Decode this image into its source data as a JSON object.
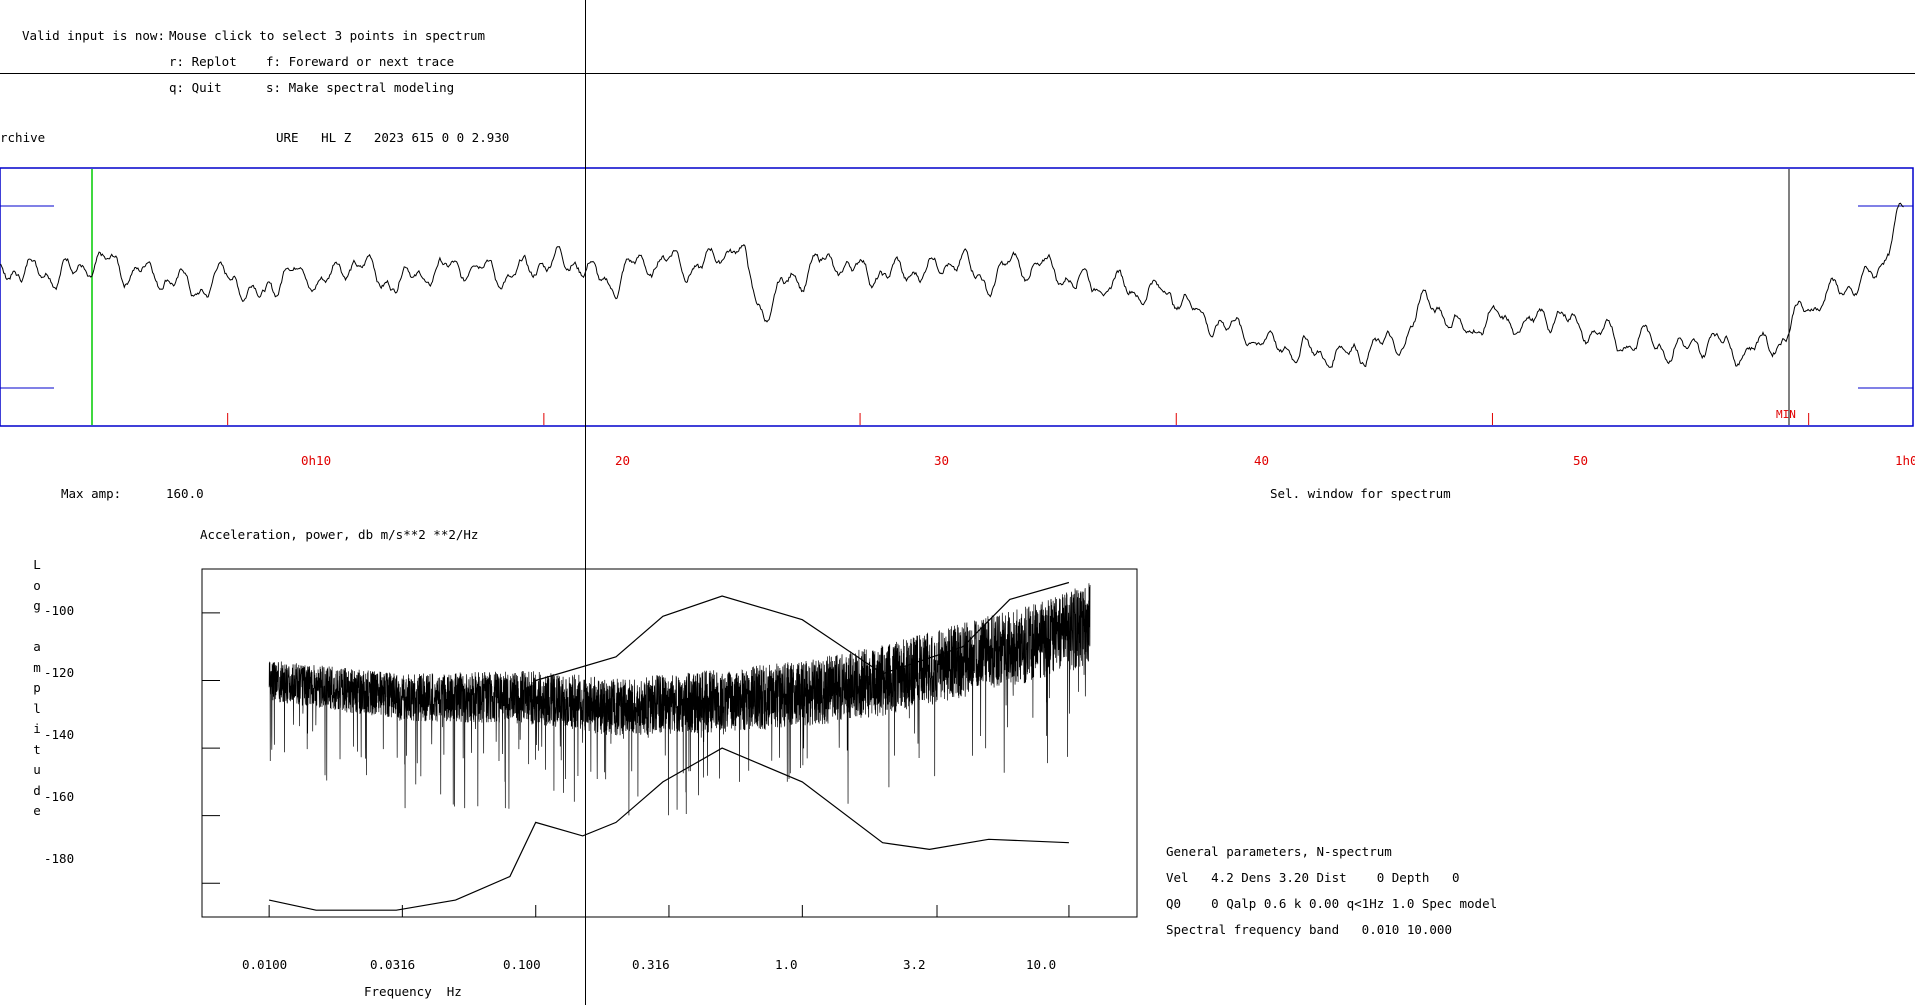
{
  "menu": {
    "prompt_label": "Valid input is now:",
    "prompt_value": "Mouse click to select 3 points in spectrum",
    "commands": [
      {
        "label": "r: Replot"
      },
      {
        "label": "f: Foreward or next trace"
      },
      {
        "label": "q: Quit"
      },
      {
        "label": "s: Make spectral modeling"
      }
    ]
  },
  "trace_header": {
    "archive": "rchive",
    "station_info": "URE   HL Z   2023 615 0 0 2.930"
  },
  "time_axis": {
    "ticks": [
      "0h10",
      "20",
      "30",
      "40",
      "50",
      "1h0"
    ],
    "unit_marker": "MIN"
  },
  "trace_footer": {
    "max_amp_label": "Max amp:",
    "max_amp_value": "160.0",
    "window_label": "Sel. window for spectrum"
  },
  "spectrum": {
    "title": "Acceleration, power, db m/s**2 **2/Hz",
    "y_label_letters": [
      "L",
      "o",
      "g",
      "",
      "a",
      "m",
      "p",
      "l",
      "i",
      "t",
      "u",
      "d",
      "e"
    ],
    "y_ticks": [
      "-100",
      "-120",
      "-140",
      "-160",
      "-180"
    ],
    "x_ticks": [
      "0.0100",
      "0.0316",
      "0.100",
      "0.316",
      "1.0",
      "3.2",
      "10.0"
    ],
    "x_label": "Frequency  Hz"
  },
  "params": {
    "title": "General parameters, N-spectrum",
    "line1": "Vel   4.2 Dens 3.20 Dist    0 Depth   0",
    "line2": "Q0    0 Qalp 0.6 k 0.00 q<1Hz 1.0 Spec model",
    "line3": "Spectral frequency band   0.010 10.000"
  },
  "colors": {
    "frame": "#0000cc",
    "time_axis": "#e00000",
    "window_marker": "#00cc00",
    "trace": "#000000"
  },
  "chart_data": [
    {
      "type": "line",
      "title": "",
      "xlabel": "",
      "ylabel": "",
      "x_unit": "minutes",
      "xlim": [
        2.8,
        63.3
      ],
      "x_ticks": [
        10,
        20,
        30,
        40,
        50,
        60
      ],
      "tick_labels": [
        "0h10",
        "20",
        "30",
        "40",
        "50",
        "1h0"
      ],
      "series": [
        {
          "x": [
            0,
            1,
            2,
            3,
            4,
            5,
            6,
            7,
            8,
            9,
            10,
            11,
            12,
            13,
            14,
            15,
            16,
            17,
            18,
            19,
            20,
            21,
            22,
            23,
            24,
            25,
            26,
            27,
            28,
            29,
            30,
            31,
            32,
            33,
            34,
            35,
            36,
            37,
            38,
            39,
            40,
            41,
            42,
            43,
            44,
            45,
            46,
            47,
            48,
            49,
            50,
            51,
            52,
            53,
            54,
            55,
            56,
            57,
            58,
            59,
            60,
            61,
            62,
            63
          ],
          "y": [
            0,
            0,
            0,
            0,
            0,
            0,
            5,
            0,
            -5,
            -20,
            -5,
            -25,
            0,
            -10,
            8,
            -10,
            -5,
            0,
            5,
            -8,
            8,
            10,
            -15,
            5,
            10,
            3,
            25,
            -40,
            -5,
            8,
            0,
            -5,
            0,
            10,
            -10,
            5,
            0,
            -10,
            -15,
            -20,
            -25,
            -50,
            -60,
            -75,
            -80,
            -85,
            -78,
            -75,
            -30,
            -60,
            -50,
            -55,
            -45,
            -60,
            -70,
            -70,
            -80,
            -70,
            -80,
            -70,
            -35,
            -20,
            -10,
            60
          ]
        }
      ]
    },
    {
      "type": "line",
      "title": "Acceleration, power, db m/s**2 **2/Hz",
      "xlabel": "Frequency  Hz",
      "ylabel": "Log amplitude",
      "x_scale": "log",
      "xlim": [
        0.0056,
        18.0
      ],
      "ylim": [
        -190,
        -87
      ],
      "x_ticks": [
        0.01,
        0.0316,
        0.1,
        0.316,
        1.0,
        3.2,
        10.0
      ],
      "y_ticks": [
        -100,
        -120,
        -140,
        -160,
        -180
      ],
      "series": [
        {
          "x": [
            0.01,
            0.0316,
            0.1,
            0.2,
            0.5,
            1.0,
            2.0,
            4.0,
            8.0,
            12.0
          ],
          "y": [
            -120,
            -125,
            -125,
            -128,
            -126,
            -124,
            -120,
            -114,
            -108,
            -103
          ]
        },
        {
          "x": [
            0.1,
            0.2,
            0.3,
            0.5,
            1.0,
            2.0,
            4.0,
            6.0,
            10.0
          ],
          "y": [
            -120,
            -113,
            -101,
            -95,
            -102,
            -118,
            -110,
            -96,
            -91
          ]
        },
        {
          "x": [
            0.01,
            0.015,
            0.03,
            0.05,
            0.08,
            0.1,
            0.15,
            0.2,
            0.3,
            0.5,
            1.0,
            2.0,
            3.0,
            5.0,
            10.0
          ],
          "y": [
            -185,
            -188,
            -188,
            -185,
            -178,
            -162,
            -166,
            -162,
            -150,
            -140,
            -150,
            -168,
            -170,
            -167,
            -168
          ]
        }
      ]
    }
  ]
}
